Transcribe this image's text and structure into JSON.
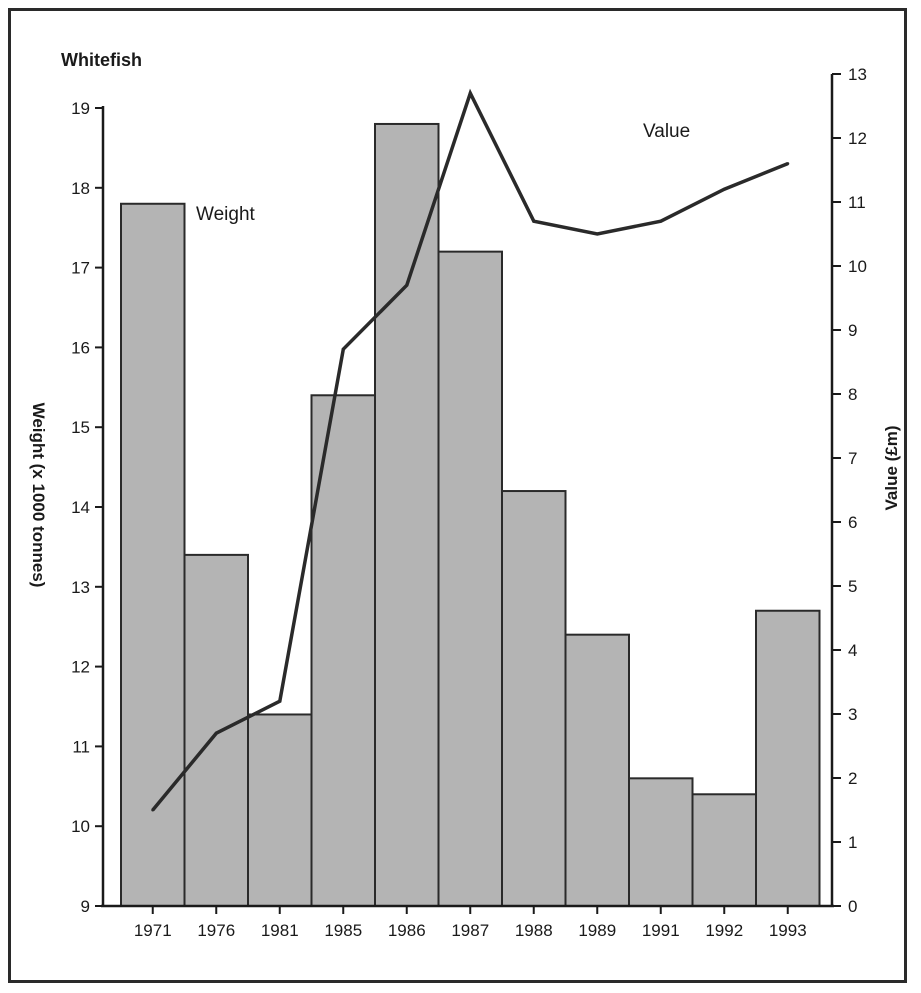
{
  "chart_data": {
    "type": "bar",
    "title": "Whitefish",
    "categories": [
      "1971",
      "1976",
      "1981",
      "1985",
      "1986",
      "1987",
      "1988",
      "1989",
      "1991",
      "1992",
      "1993"
    ],
    "series": [
      {
        "name": "Weight",
        "type": "bar",
        "axis": "left",
        "values": [
          17.8,
          13.4,
          11.4,
          15.4,
          18.8,
          17.2,
          14.2,
          12.4,
          10.6,
          10.4,
          12.7
        ]
      },
      {
        "name": "Value",
        "type": "line",
        "axis": "right",
        "values": [
          1.5,
          2.7,
          3.2,
          8.7,
          9.7,
          12.7,
          10.7,
          10.5,
          10.7,
          11.2,
          11.6
        ]
      }
    ],
    "ylabel": "Weight (x 1000 tonnes)",
    "ylabel_right": "Value (£m)",
    "ylim": [
      9,
      19
    ],
    "ylim_right": [
      0,
      13
    ],
    "yticks": [
      9,
      10,
      11,
      12,
      13,
      14,
      15,
      16,
      17,
      18,
      19
    ],
    "yticks_right": [
      0,
      1,
      2,
      3,
      4,
      5,
      6,
      7,
      8,
      9,
      10,
      11,
      12,
      13
    ],
    "grid": false,
    "legend": "none",
    "colors": {
      "bars": "#b4b4b4",
      "bar_edge": "#2a2a2a",
      "line": "#2a2a2a",
      "axis": "#1a1a1a"
    }
  }
}
